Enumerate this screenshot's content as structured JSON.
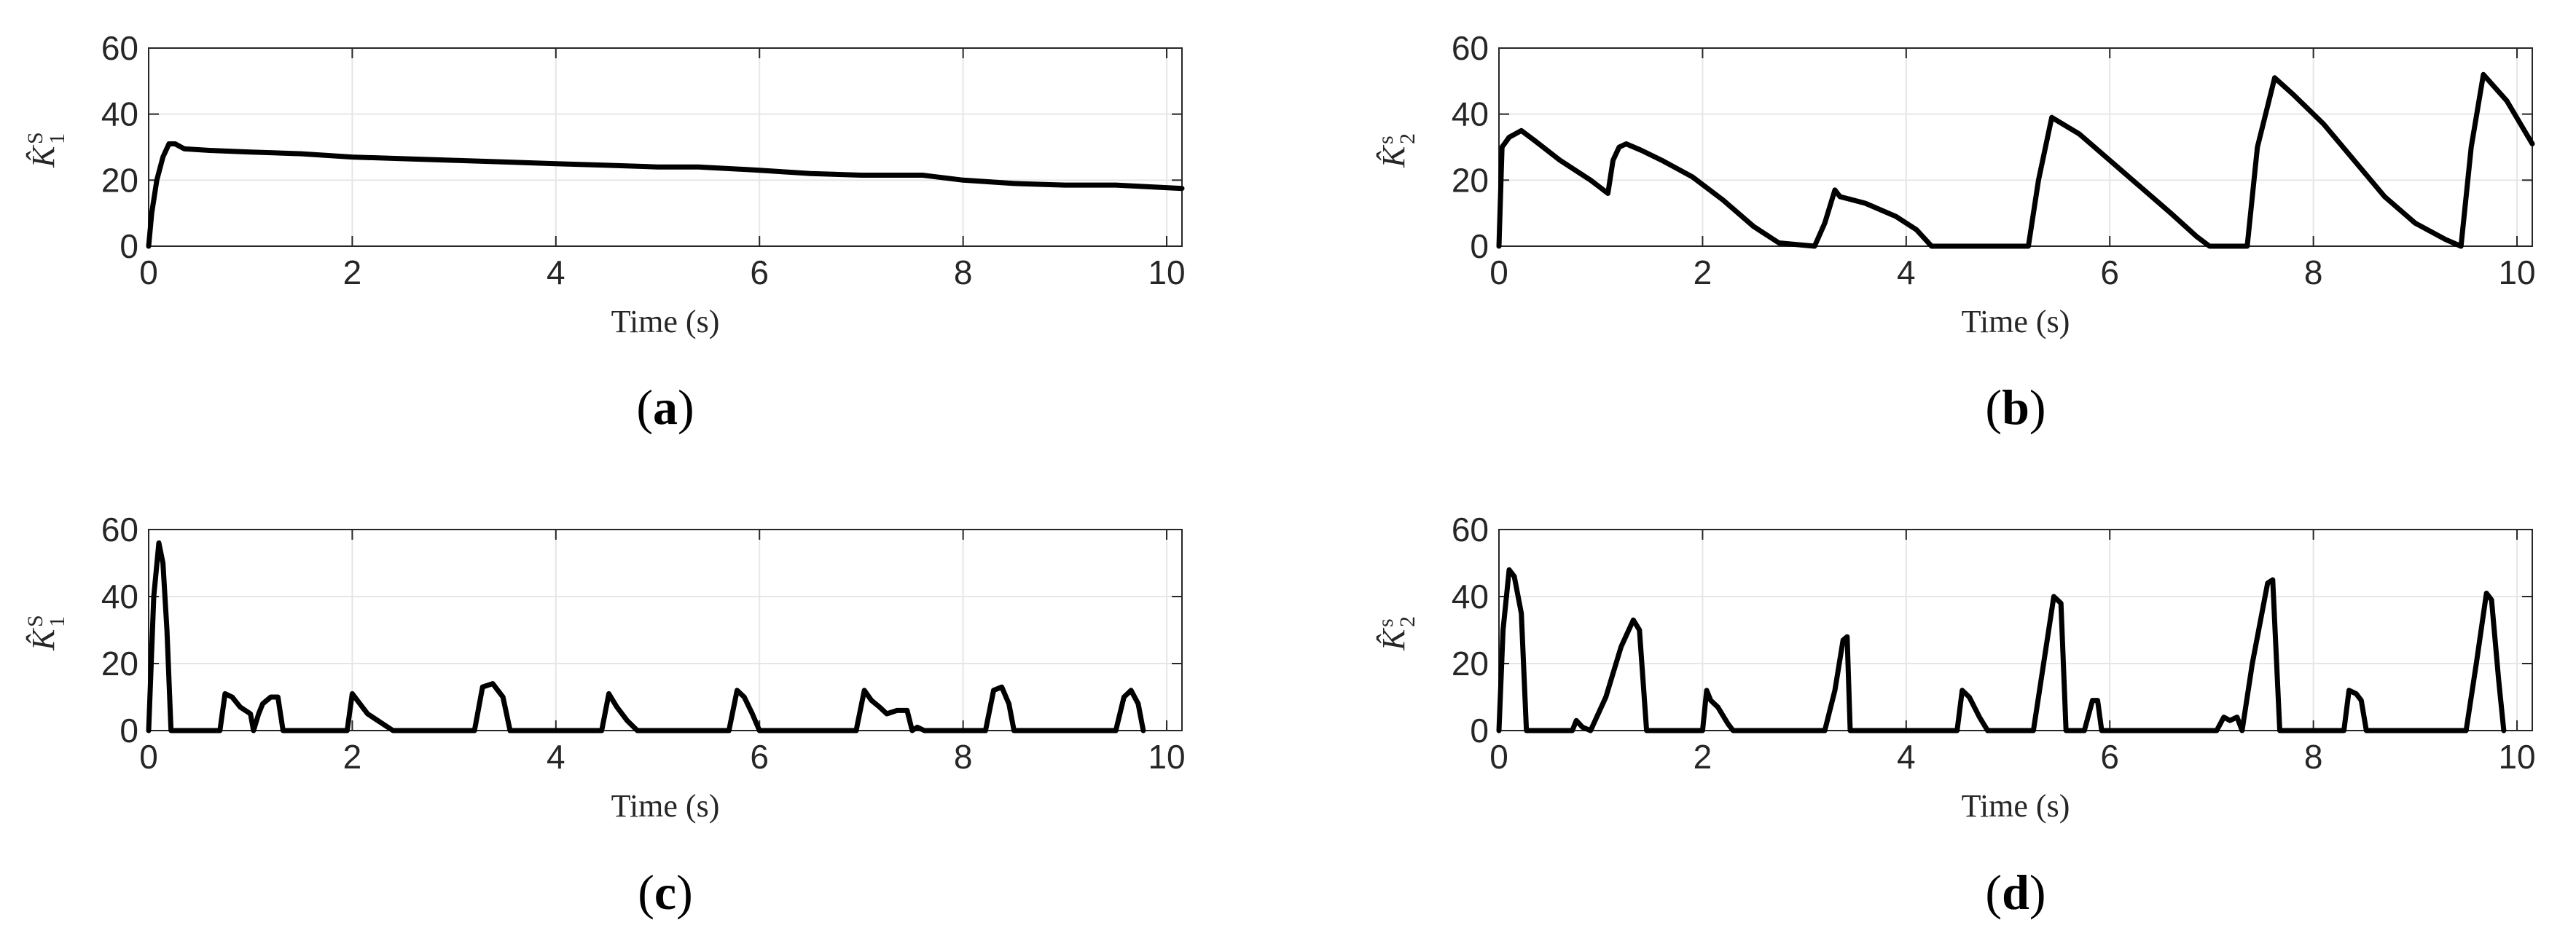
{
  "chart_data": [
    {
      "id": "a",
      "type": "line",
      "panel_label": "a",
      "xlabel": "Time (s)",
      "ylabel": {
        "main": "K̂",
        "sup": "S",
        "sub": "1"
      },
      "xlim": [
        0,
        10.15
      ],
      "ylim": [
        0,
        60
      ],
      "xticks": [
        0,
        2,
        4,
        6,
        8,
        10
      ],
      "yticks": [
        0,
        20,
        40,
        60
      ],
      "grid": true,
      "series": [
        {
          "x": [
            0,
            0.03,
            0.08,
            0.14,
            0.2,
            0.26,
            0.35,
            0.6,
            1.0,
            1.5,
            2.0,
            2.5,
            3.0,
            3.5,
            4.0,
            4.5,
            5.0,
            5.4,
            6.0,
            6.5,
            7.0,
            7.6,
            8.0,
            8.5,
            9.0,
            9.5,
            10.15
          ],
          "y": [
            0,
            10,
            20,
            27,
            31,
            31,
            29.5,
            29,
            28.5,
            28,
            27,
            26.5,
            26,
            25.5,
            25,
            24.5,
            24,
            24,
            23,
            22,
            21.5,
            21.5,
            20,
            19,
            18.5,
            18.5,
            17.5
          ]
        }
      ]
    },
    {
      "id": "b",
      "type": "line",
      "panel_label": "b",
      "xlabel": "Time (s)",
      "ylabel": {
        "main": "K̂",
        "sup": "s",
        "sub": "2"
      },
      "xlim": [
        0,
        10.15
      ],
      "ylim": [
        0,
        60
      ],
      "xticks": [
        0,
        2,
        4,
        6,
        8,
        10
      ],
      "yticks": [
        0,
        20,
        40,
        60
      ],
      "grid": true,
      "series": [
        {
          "x": [
            0,
            0.03,
            0.1,
            0.22,
            0.35,
            0.6,
            0.9,
            1.07,
            1.12,
            1.18,
            1.25,
            1.4,
            1.6,
            1.9,
            2.2,
            2.5,
            2.75,
            3.1,
            3.2,
            3.3,
            3.35,
            3.6,
            3.9,
            4.1,
            4.25,
            5.2,
            5.3,
            5.43,
            5.7,
            6.0,
            6.3,
            6.6,
            6.85,
            6.98,
            7.35,
            7.45,
            7.62,
            7.8,
            8.1,
            8.4,
            8.7,
            9.0,
            9.3,
            9.45,
            9.55,
            9.67,
            9.9,
            10.15
          ],
          "y": [
            0,
            30,
            33,
            35,
            32,
            26,
            20,
            16,
            26,
            30,
            31,
            29,
            26,
            21,
            14,
            6,
            1,
            0,
            7,
            17,
            15,
            13,
            9,
            5,
            0,
            0,
            20,
            39,
            34,
            26,
            18,
            10,
            3,
            0,
            0,
            30,
            51,
            46,
            37,
            26,
            15,
            7,
            2,
            0,
            30,
            52,
            44,
            31
          ]
        }
      ]
    },
    {
      "id": "c",
      "type": "line",
      "panel_label": "c",
      "xlabel": "Time (s)",
      "ylabel": {
        "main": "K̂",
        "sup": "S",
        "sub": "1"
      },
      "xlim": [
        0,
        10.15
      ],
      "ylim": [
        0,
        60
      ],
      "xticks": [
        0,
        2,
        4,
        6,
        8,
        10
      ],
      "yticks": [
        0,
        20,
        40,
        60
      ],
      "grid": true,
      "series": [
        {
          "x": [
            0,
            0.05,
            0.1,
            0.14,
            0.18,
            0.22,
            0.3,
            0.7,
            0.75,
            0.82,
            0.9,
            1.0,
            1.03,
            1.08,
            1.12,
            1.2,
            1.27,
            1.32,
            1.95,
            2.0,
            2.05,
            2.15,
            2.3,
            2.4,
            3.2,
            3.28,
            3.38,
            3.48,
            3.55,
            4.45,
            4.52,
            4.6,
            4.7,
            4.8,
            5.7,
            5.78,
            5.85,
            5.93,
            6.0,
            6.95,
            7.03,
            7.1,
            7.18,
            7.25,
            7.35,
            7.45,
            7.5,
            7.55,
            7.62,
            8.22,
            8.3,
            8.38,
            8.45,
            8.5,
            9.5,
            9.58,
            9.65,
            9.72,
            9.77
          ],
          "y": [
            0,
            40,
            56,
            50,
            30,
            0,
            0,
            0,
            11,
            10,
            7,
            5,
            0,
            5,
            8,
            10,
            10,
            0,
            0,
            11,
            9,
            5,
            2,
            0,
            0,
            13,
            14,
            10,
            0,
            0,
            11,
            7,
            3,
            0,
            0,
            12,
            10,
            5,
            0,
            0,
            12,
            9,
            7,
            5,
            6,
            6,
            0,
            1,
            0,
            0,
            12,
            13,
            8,
            0,
            0,
            10,
            12,
            8,
            0
          ]
        }
      ]
    },
    {
      "id": "d",
      "type": "line",
      "panel_label": "d",
      "xlabel": "Time (s)",
      "ylabel": {
        "main": "K̂",
        "sup": "s",
        "sub": "2"
      },
      "xlim": [
        0,
        10.15
      ],
      "ylim": [
        0,
        60
      ],
      "xticks": [
        0,
        2,
        4,
        6,
        8,
        10
      ],
      "yticks": [
        0,
        20,
        40,
        60
      ],
      "grid": true,
      "series": [
        {
          "x": [
            0,
            0.04,
            0.1,
            0.15,
            0.22,
            0.27,
            0.35,
            0.72,
            0.76,
            0.82,
            0.9,
            1.05,
            1.2,
            1.32,
            1.38,
            1.45,
            2.0,
            2.04,
            2.08,
            2.15,
            2.25,
            2.3,
            3.2,
            3.3,
            3.38,
            3.42,
            3.45,
            4.5,
            4.55,
            4.62,
            4.72,
            4.8,
            5.25,
            5.35,
            5.45,
            5.52,
            5.57,
            5.75,
            5.83,
            5.88,
            5.92,
            7.05,
            7.12,
            7.18,
            7.25,
            7.3,
            7.4,
            7.55,
            7.6,
            7.67,
            8.3,
            8.35,
            8.42,
            8.47,
            8.52,
            9.5,
            9.6,
            9.7,
            9.75,
            9.82,
            9.87
          ],
          "y": [
            0,
            30,
            48,
            46,
            35,
            0,
            0,
            0,
            3,
            1,
            0,
            10,
            25,
            33,
            30,
            0,
            0,
            12,
            9,
            7,
            2,
            0,
            0,
            12,
            27,
            28,
            0,
            0,
            12,
            10,
            4,
            0,
            0,
            20,
            40,
            38,
            0,
            0,
            9,
            9,
            0,
            0,
            4,
            3,
            4,
            0,
            20,
            44,
            45,
            0,
            0,
            12,
            11,
            9,
            0,
            0,
            20,
            41,
            39,
            15,
            0
          ]
        }
      ]
    }
  ]
}
